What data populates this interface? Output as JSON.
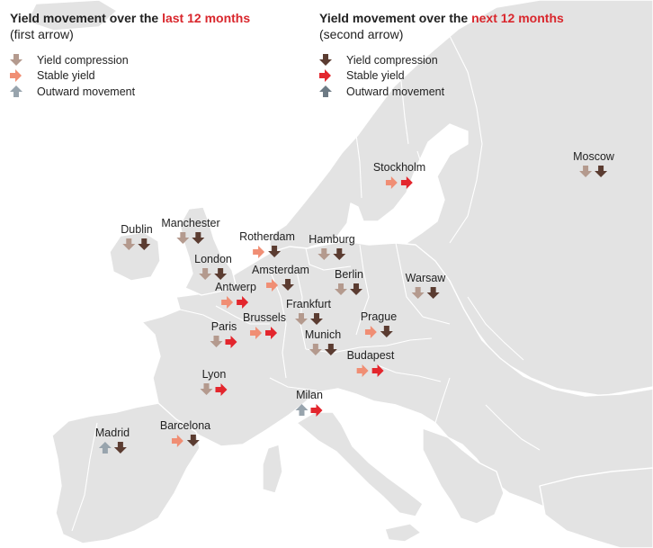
{
  "legend_last": {
    "title_prefix": "Yield movement over the ",
    "title_highlight": "last 12 months",
    "subtitle": "(first arrow)",
    "items": [
      {
        "dir": "down",
        "label": "Yield compression"
      },
      {
        "dir": "right",
        "label": "Stable yield"
      },
      {
        "dir": "up",
        "label": "Outward movement"
      }
    ]
  },
  "legend_next": {
    "title_prefix": "Yield movement over the ",
    "title_highlight": "next 12 months",
    "subtitle": "(second arrow)",
    "items": [
      {
        "dir": "down",
        "label": "Yield compression"
      },
      {
        "dir": "right",
        "label": "Stable yield"
      },
      {
        "dir": "up",
        "label": "Outward movement"
      }
    ]
  },
  "colors": {
    "last_down": "#b49a8e",
    "last_stable": "#f08e74",
    "last_up": "#98a4ad",
    "next_down": "#5b3c31",
    "next_stable": "#e3262d",
    "next_up": "#6d7a84",
    "accent": "#d9262c",
    "land": "#e3e3e3",
    "sea": "#ffffff"
  },
  "cities": [
    {
      "name": "Stockholm",
      "last": "right",
      "next": "right"
    },
    {
      "name": "Moscow",
      "last": "down",
      "next": "down"
    },
    {
      "name": "Dublin",
      "last": "down",
      "next": "down"
    },
    {
      "name": "Manchester",
      "last": "down",
      "next": "down"
    },
    {
      "name": "Rotherdam",
      "last": "right",
      "next": "down"
    },
    {
      "name": "Hamburg",
      "last": "down",
      "next": "down"
    },
    {
      "name": "London",
      "last": "down",
      "next": "down"
    },
    {
      "name": "Amsterdam",
      "last": "right",
      "next": "down"
    },
    {
      "name": "Berlin",
      "last": "down",
      "next": "down"
    },
    {
      "name": "Warsaw",
      "last": "down",
      "next": "down"
    },
    {
      "name": "Antwerp",
      "last": "right",
      "next": "right"
    },
    {
      "name": "Frankfurt",
      "last": "down",
      "next": "down"
    },
    {
      "name": "Paris",
      "last": "down",
      "next": "right"
    },
    {
      "name": "Brussels",
      "last": "right",
      "next": "right"
    },
    {
      "name": "Prague",
      "last": "right",
      "next": "down"
    },
    {
      "name": "Munich",
      "last": "down",
      "next": "down"
    },
    {
      "name": "Budapest",
      "last": "right",
      "next": "right"
    },
    {
      "name": "Lyon",
      "last": "down",
      "next": "right"
    },
    {
      "name": "Milan",
      "last": "up",
      "next": "right"
    },
    {
      "name": "Barcelona",
      "last": "right",
      "next": "down"
    },
    {
      "name": "Madrid",
      "last": "up",
      "next": "down"
    }
  ]
}
